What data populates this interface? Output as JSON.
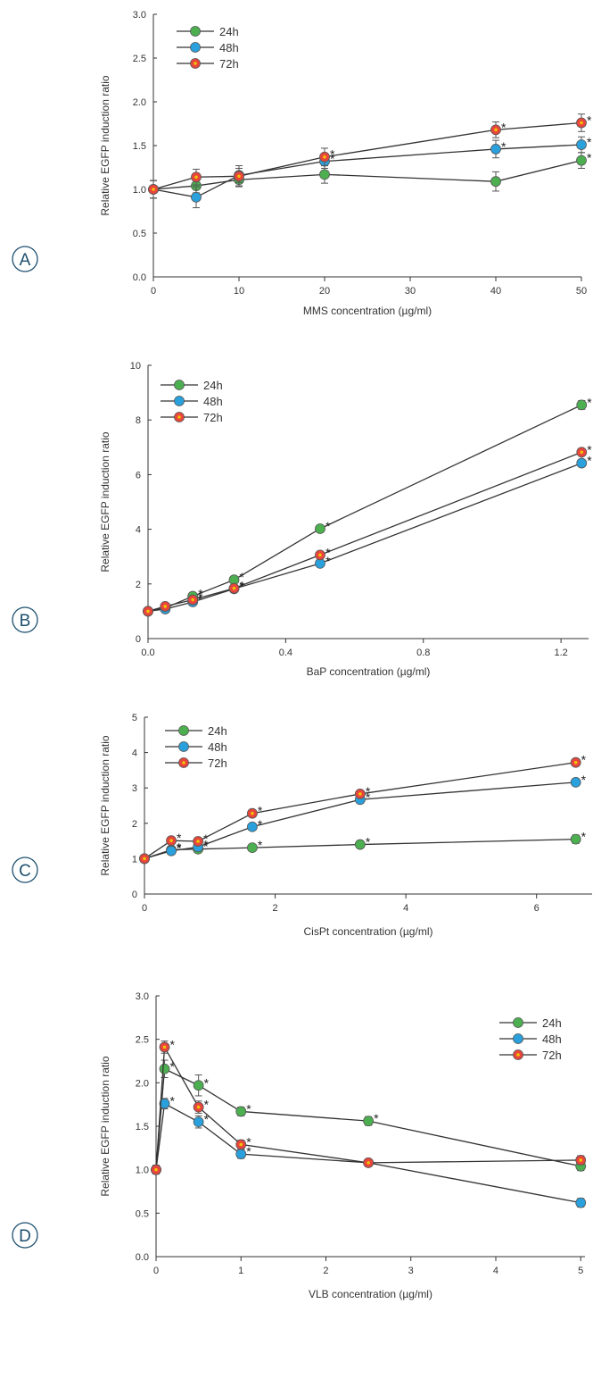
{
  "series_colors": {
    "24h": {
      "fill": "#4caf50",
      "dot": "#4caf50"
    },
    "48h": {
      "fill": "#2aa0dc",
      "dot": "#2aa0dc"
    },
    "72h": {
      "fill": "#e8463c",
      "dot": "#f2c200"
    }
  },
  "chart_data": [
    {
      "panel": "A",
      "type": "line",
      "xlabel": "MMS concentration (µg/ml)",
      "ylabel": "Relative EGFP induction ratio",
      "xlim": [
        0,
        50
      ],
      "ylim": [
        0,
        3
      ],
      "xticks": [
        0,
        10,
        20,
        30,
        40,
        50
      ],
      "xtick_labels": [
        "0",
        "10",
        "20",
        "30",
        "40",
        "50"
      ],
      "yticks": [
        0,
        0.5,
        1,
        1.5,
        2,
        2.5,
        3
      ],
      "ytick_labels": [
        "0.0",
        "0.5",
        "1.0",
        "1.5",
        "2.0",
        "2.5",
        "3.0"
      ],
      "legend_position": "top-left",
      "x": [
        0,
        5,
        10,
        20,
        40,
        50
      ],
      "series": [
        {
          "name": "24h",
          "values": [
            1.0,
            1.04,
            1.11,
            1.17,
            1.09,
            1.33
          ],
          "errors": [
            0.1,
            0.08,
            0.07,
            0.1,
            0.11,
            0.09
          ],
          "stars": [
            false,
            false,
            false,
            false,
            false,
            true
          ]
        },
        {
          "name": "48h",
          "values": [
            1.0,
            0.91,
            1.16,
            1.32,
            1.46,
            1.51
          ],
          "errors": [
            0.1,
            0.12,
            0.08,
            0.08,
            0.1,
            0.09
          ],
          "stars": [
            false,
            false,
            false,
            true,
            true,
            true
          ]
        },
        {
          "name": "72h",
          "values": [
            1.0,
            1.14,
            1.15,
            1.37,
            1.68,
            1.76
          ],
          "errors": [
            0.1,
            0.09,
            0.12,
            0.1,
            0.09,
            0.1
          ],
          "stars": [
            false,
            false,
            false,
            true,
            true,
            true
          ]
        }
      ]
    },
    {
      "panel": "B",
      "type": "line",
      "xlabel": "BaP concentration (µg/ml)",
      "ylabel": "Relative EGFP induction ratio",
      "xlim": [
        0,
        1.28
      ],
      "ylim": [
        0,
        10
      ],
      "xticks": [
        0,
        0.4,
        0.8,
        1.2
      ],
      "xtick_labels": [
        "0.0",
        "0.4",
        "0.8",
        "1.2"
      ],
      "yticks": [
        0,
        2,
        4,
        6,
        8,
        10
      ],
      "ytick_labels": [
        "0",
        "2",
        "4",
        "6",
        "8",
        "10"
      ],
      "legend_position": "top-left",
      "x": [
        0,
        0.05,
        0.13,
        0.25,
        0.5,
        1.26
      ],
      "series": [
        {
          "name": "24h",
          "values": [
            1.0,
            1.12,
            1.55,
            2.15,
            4.02,
            8.55
          ],
          "errors": [
            0.06,
            0.06,
            0.08,
            0.08,
            0.09,
            0.16
          ],
          "stars": [
            false,
            false,
            true,
            true,
            true,
            true
          ]
        },
        {
          "name": "48h",
          "values": [
            1.0,
            1.08,
            1.34,
            1.82,
            2.75,
            6.42
          ],
          "errors": [
            0.06,
            0.06,
            0.07,
            0.07,
            0.09,
            0.12
          ],
          "stars": [
            false,
            false,
            true,
            true,
            true,
            true
          ]
        },
        {
          "name": "72h",
          "values": [
            1.0,
            1.18,
            1.42,
            1.84,
            3.06,
            6.82
          ],
          "errors": [
            0.06,
            0.06,
            0.07,
            0.07,
            0.09,
            0.12
          ],
          "stars": [
            false,
            false,
            true,
            true,
            true,
            true
          ]
        }
      ]
    },
    {
      "panel": "C",
      "type": "line",
      "xlabel": "CisPt concentration (µg/ml)",
      "ylabel": "Relative EGFP induction ratio",
      "xlim": [
        0,
        6.85
      ],
      "ylim": [
        0,
        5
      ],
      "xticks": [
        0,
        2,
        4,
        6
      ],
      "xtick_labels": [
        "0",
        "2",
        "4",
        "6"
      ],
      "yticks": [
        0,
        1,
        2,
        3,
        4,
        5
      ],
      "ytick_labels": [
        "0",
        "1",
        "2",
        "3",
        "4",
        "5"
      ],
      "legend_position": "top-left",
      "x": [
        0,
        0.41,
        0.82,
        1.65,
        3.3,
        6.6
      ],
      "series": [
        {
          "name": "24h",
          "values": [
            1.0,
            1.25,
            1.27,
            1.31,
            1.4,
            1.55
          ],
          "errors": [
            0.08,
            0.09,
            0.09,
            0.09,
            0.1,
            0.12
          ],
          "stars": [
            false,
            true,
            true,
            true,
            true,
            true
          ]
        },
        {
          "name": "48h",
          "values": [
            1.0,
            1.22,
            1.33,
            1.9,
            2.67,
            3.16
          ],
          "errors": [
            0.07,
            0.09,
            0.08,
            0.08,
            0.08,
            0.1
          ],
          "stars": [
            false,
            true,
            true,
            true,
            true,
            true
          ]
        },
        {
          "name": "72h",
          "values": [
            1.0,
            1.51,
            1.49,
            2.28,
            2.83,
            3.72
          ],
          "errors": [
            0.07,
            0.08,
            0.08,
            0.08,
            0.08,
            0.1
          ],
          "stars": [
            false,
            true,
            true,
            true,
            true,
            true
          ]
        }
      ]
    },
    {
      "panel": "D",
      "type": "line",
      "xlabel": "VLB concentration (µg/ml)",
      "ylabel": "Relative EGFP induction ratio",
      "xlim": [
        0,
        5.05
      ],
      "ylim": [
        0,
        3
      ],
      "xticks": [
        0,
        1,
        2,
        3,
        4,
        5
      ],
      "xtick_labels": [
        "0",
        "1",
        "2",
        "3",
        "4",
        "5"
      ],
      "yticks": [
        0,
        0.5,
        1,
        1.5,
        2,
        2.5,
        3
      ],
      "ytick_labels": [
        "0.0",
        "0.5",
        "1.0",
        "1.5",
        "2.0",
        "2.5",
        "3.0"
      ],
      "legend_position": "top-right",
      "x": [
        0,
        0.1,
        0.5,
        1,
        2.5,
        5
      ],
      "series": [
        {
          "name": "24h",
          "values": [
            1.0,
            2.16,
            1.97,
            1.67,
            1.56,
            1.04
          ],
          "errors": [
            0.05,
            0.1,
            0.12,
            0.05,
            0.05,
            0.05
          ],
          "stars": [
            false,
            true,
            true,
            true,
            true,
            false
          ]
        },
        {
          "name": "48h",
          "values": [
            1.0,
            1.76,
            1.55,
            1.18,
            1.08,
            0.62
          ],
          "errors": [
            0.05,
            0.06,
            0.07,
            0.05,
            0.04,
            0.05
          ],
          "stars": [
            false,
            true,
            true,
            true,
            false,
            false
          ]
        },
        {
          "name": "72h",
          "values": [
            1.0,
            2.41,
            1.72,
            1.29,
            1.08,
            1.11
          ],
          "errors": [
            0.05,
            0.07,
            0.07,
            0.05,
            0.04,
            0.05
          ],
          "stars": [
            false,
            true,
            true,
            true,
            false,
            false
          ]
        }
      ]
    }
  ]
}
